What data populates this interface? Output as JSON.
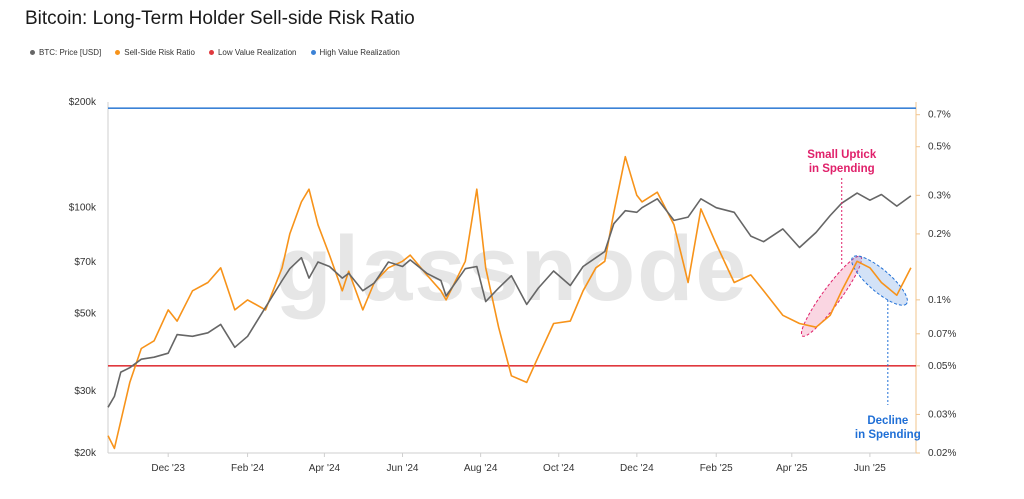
{
  "colors": {
    "price": "#666666",
    "ratio": "#f7931a",
    "low": "#e0393e",
    "high": "#3b82d6",
    "uptick": "#e0206a",
    "decline": "#1f6fd6"
  },
  "watermark": "glassnode",
  "chart_data": {
    "type": "line",
    "title": "Bitcoin: Long-Term Holder Sell-side Risk Ratio",
    "legend_position": "top-left",
    "grid": false,
    "x_ticks": [
      "Dec '23",
      "Feb '24",
      "Apr '24",
      "Jun '24",
      "Aug '24",
      "Oct '24",
      "Dec '24",
      "Feb '25",
      "Apr '25",
      "Jun '25"
    ],
    "x_tick_dates": [
      "2023-12-01",
      "2024-02-01",
      "2024-04-01",
      "2024-06-01",
      "2024-08-01",
      "2024-10-01",
      "2024-12-01",
      "2025-02-01",
      "2025-04-01",
      "2025-06-01"
    ],
    "x_range": [
      "2023-10-15",
      "2025-07-07"
    ],
    "y_left": {
      "scale": "log",
      "range": [
        20000,
        200000
      ],
      "ticks": [
        20000,
        30000,
        50000,
        70000,
        100000,
        200000
      ],
      "tick_labels": [
        "$20k",
        "$30k",
        "$50k",
        "$70k",
        "$100k",
        "$200k"
      ]
    },
    "y_right": {
      "scale": "log",
      "range": [
        0.0002,
        0.008
      ],
      "ticks": [
        0.0002,
        0.0003,
        0.0005,
        0.0007,
        0.001,
        0.002,
        0.003,
        0.005,
        0.007
      ],
      "tick_labels": [
        "0.02%",
        "0.03%",
        "0.05%",
        "0.07%",
        "0.1%",
        "0.2%",
        "0.3%",
        "0.5%",
        "0.7%"
      ]
    },
    "series": [
      {
        "name": "BTC: Price [USD]",
        "axis": "left",
        "points": [
          [
            "2023-10-15",
            27000
          ],
          [
            "2023-10-20",
            29000
          ],
          [
            "2023-10-25",
            34000
          ],
          [
            "2023-11-01",
            35000
          ],
          [
            "2023-11-10",
            37000
          ],
          [
            "2023-11-20",
            37500
          ],
          [
            "2023-12-01",
            38500
          ],
          [
            "2023-12-08",
            43500
          ],
          [
            "2023-12-20",
            43000
          ],
          [
            "2024-01-01",
            44000
          ],
          [
            "2024-01-11",
            46500
          ],
          [
            "2024-01-22",
            40000
          ],
          [
            "2024-02-01",
            43000
          ],
          [
            "2024-02-15",
            52000
          ],
          [
            "2024-02-28",
            62000
          ],
          [
            "2024-03-05",
            67000
          ],
          [
            "2024-03-14",
            72000
          ],
          [
            "2024-03-20",
            63000
          ],
          [
            "2024-03-27",
            70000
          ],
          [
            "2024-04-05",
            68000
          ],
          [
            "2024-04-15",
            63000
          ],
          [
            "2024-04-20",
            65000
          ],
          [
            "2024-05-01",
            58000
          ],
          [
            "2024-05-10",
            61000
          ],
          [
            "2024-05-21",
            70000
          ],
          [
            "2024-06-01",
            68000
          ],
          [
            "2024-06-07",
            71000
          ],
          [
            "2024-06-20",
            65000
          ],
          [
            "2024-07-01",
            62000
          ],
          [
            "2024-07-05",
            56000
          ],
          [
            "2024-07-20",
            67000
          ],
          [
            "2024-07-29",
            68000
          ],
          [
            "2024-08-05",
            54000
          ],
          [
            "2024-08-15",
            59000
          ],
          [
            "2024-08-25",
            64000
          ],
          [
            "2024-09-06",
            53000
          ],
          [
            "2024-09-15",
            59000
          ],
          [
            "2024-09-27",
            66000
          ],
          [
            "2024-10-10",
            60000
          ],
          [
            "2024-10-20",
            68000
          ],
          [
            "2024-10-30",
            72000
          ],
          [
            "2024-11-06",
            75000
          ],
          [
            "2024-11-13",
            90000
          ],
          [
            "2024-11-22",
            98000
          ],
          [
            "2024-12-01",
            97000
          ],
          [
            "2024-12-05",
            100000
          ],
          [
            "2024-12-17",
            106000
          ],
          [
            "2024-12-30",
            92000
          ],
          [
            "2025-01-10",
            94000
          ],
          [
            "2025-01-20",
            106000
          ],
          [
            "2025-02-01",
            100000
          ],
          [
            "2025-02-15",
            97000
          ],
          [
            "2025-02-28",
            83000
          ],
          [
            "2025-03-10",
            80000
          ],
          [
            "2025-03-25",
            87000
          ],
          [
            "2025-04-07",
            77000
          ],
          [
            "2025-04-20",
            85000
          ],
          [
            "2025-05-01",
            95000
          ],
          [
            "2025-05-10",
            103000
          ],
          [
            "2025-05-22",
            110000
          ],
          [
            "2025-06-01",
            105000
          ],
          [
            "2025-06-10",
            109000
          ],
          [
            "2025-06-22",
            101000
          ],
          [
            "2025-07-03",
            108000
          ]
        ]
      },
      {
        "name": "Sell-Side Risk Ratio",
        "axis": "right",
        "points": [
          [
            "2023-10-15",
            0.00024
          ],
          [
            "2023-10-20",
            0.00021
          ],
          [
            "2023-10-25",
            0.00028
          ],
          [
            "2023-11-01",
            0.00042
          ],
          [
            "2023-11-10",
            0.0006
          ],
          [
            "2023-11-20",
            0.00065
          ],
          [
            "2023-12-01",
            0.0009
          ],
          [
            "2023-12-08",
            0.0008
          ],
          [
            "2023-12-20",
            0.0011
          ],
          [
            "2024-01-01",
            0.0012
          ],
          [
            "2024-01-11",
            0.0014
          ],
          [
            "2024-01-22",
            0.0009
          ],
          [
            "2024-02-01",
            0.001
          ],
          [
            "2024-02-15",
            0.0009
          ],
          [
            "2024-02-28",
            0.0014
          ],
          [
            "2024-03-05",
            0.002
          ],
          [
            "2024-03-14",
            0.0028
          ],
          [
            "2024-03-20",
            0.0032
          ],
          [
            "2024-03-27",
            0.0022
          ],
          [
            "2024-04-05",
            0.0016
          ],
          [
            "2024-04-15",
            0.0011
          ],
          [
            "2024-04-20",
            0.00135
          ],
          [
            "2024-05-01",
            0.0009
          ],
          [
            "2024-05-10",
            0.0012
          ],
          [
            "2024-05-21",
            0.0014
          ],
          [
            "2024-06-01",
            0.0015
          ],
          [
            "2024-06-07",
            0.0016
          ],
          [
            "2024-06-20",
            0.0013
          ],
          [
            "2024-07-01",
            0.0011
          ],
          [
            "2024-07-05",
            0.001
          ],
          [
            "2024-07-20",
            0.0015
          ],
          [
            "2024-07-29",
            0.0032
          ],
          [
            "2024-08-05",
            0.0014
          ],
          [
            "2024-08-15",
            0.00075
          ],
          [
            "2024-08-25",
            0.00045
          ],
          [
            "2024-09-06",
            0.00042
          ],
          [
            "2024-09-15",
            0.00055
          ],
          [
            "2024-09-27",
            0.00078
          ],
          [
            "2024-10-10",
            0.0008
          ],
          [
            "2024-10-20",
            0.0011
          ],
          [
            "2024-10-30",
            0.0014
          ],
          [
            "2024-11-06",
            0.0015
          ],
          [
            "2024-11-13",
            0.0025
          ],
          [
            "2024-11-22",
            0.0045
          ],
          [
            "2024-12-01",
            0.003
          ],
          [
            "2024-12-05",
            0.0028
          ],
          [
            "2024-12-17",
            0.0031
          ],
          [
            "2024-12-30",
            0.0022
          ],
          [
            "2025-01-10",
            0.0012
          ],
          [
            "2025-01-20",
            0.0026
          ],
          [
            "2025-02-01",
            0.0018
          ],
          [
            "2025-02-15",
            0.0012
          ],
          [
            "2025-02-28",
            0.0013
          ],
          [
            "2025-03-10",
            0.0011
          ],
          [
            "2025-03-25",
            0.00085
          ],
          [
            "2025-04-07",
            0.00078
          ],
          [
            "2025-04-20",
            0.00075
          ],
          [
            "2025-05-01",
            0.00085
          ],
          [
            "2025-05-10",
            0.0011
          ],
          [
            "2025-05-22",
            0.0015
          ],
          [
            "2025-06-01",
            0.0014
          ],
          [
            "2025-06-10",
            0.0012
          ],
          [
            "2025-06-22",
            0.00105
          ],
          [
            "2025-07-03",
            0.0014
          ]
        ]
      },
      {
        "name": "Low Value Realization",
        "axis": "right",
        "constant": 0.0005
      },
      {
        "name": "High Value Realization",
        "axis": "right",
        "constant": 0.0075
      }
    ],
    "annotations": [
      {
        "text_lines": [
          "Small Uptick",
          "in Spending"
        ],
        "color": "uptick",
        "x": "2025-05-10"
      },
      {
        "text_lines": [
          "Decline",
          "in Spending"
        ],
        "color": "decline",
        "x": "2025-06-15"
      }
    ]
  }
}
